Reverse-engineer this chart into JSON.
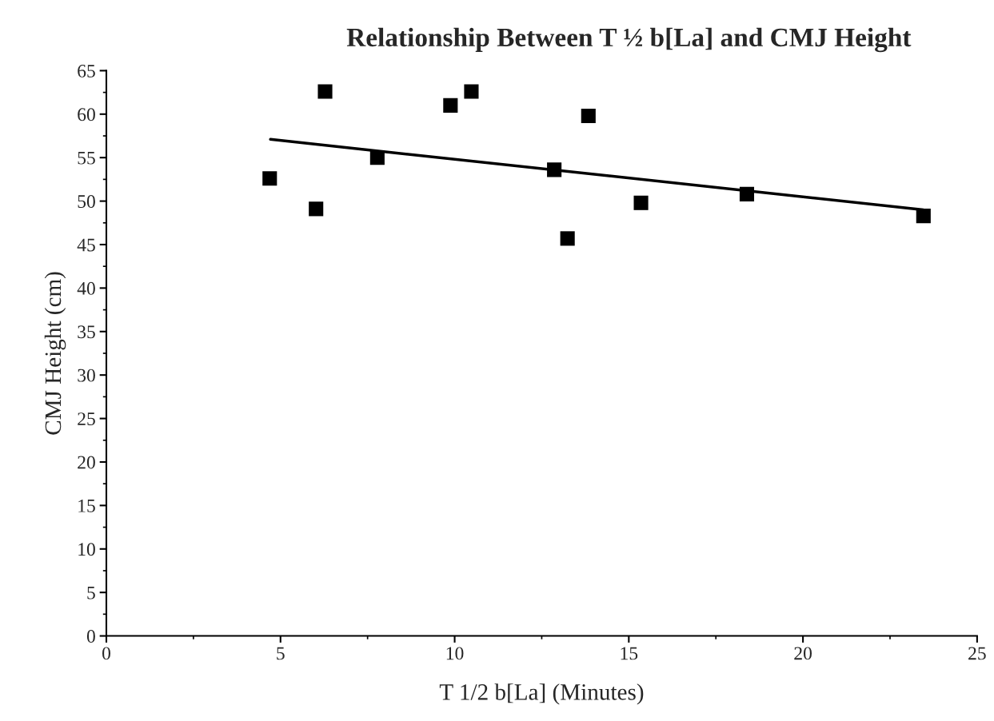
{
  "chart_data": {
    "type": "scatter",
    "title": "Relationship Between T ½ b[La] and CMJ Height",
    "xlabel": "T 1/2 b[La] (Minutes)",
    "ylabel": "CMJ Height (cm)",
    "xlim": [
      0,
      25
    ],
    "xticks": [
      0,
      5,
      10,
      15,
      20,
      25
    ],
    "ylim": [
      0,
      65
    ],
    "yticks": [
      0,
      5,
      10,
      15,
      20,
      25,
      30,
      35,
      40,
      45,
      50,
      55,
      60,
      65
    ],
    "marker": "square",
    "grid": false,
    "legend": false,
    "series": [
      {
        "color": "#000000",
        "x": [
          4.69,
          6.02,
          6.28,
          7.78,
          9.88,
          10.48,
          12.86,
          13.24,
          13.84,
          15.35,
          18.39,
          23.46
        ],
        "values": [
          52.6,
          49.1,
          62.6,
          55.0,
          61.0,
          62.6,
          53.6,
          45.7,
          59.8,
          49.8,
          50.8,
          48.3
        ]
      },
      {
        "type": "line",
        "color": "#000000",
        "marker": "none",
        "x": [
          4.71,
          23.46
        ],
        "values": [
          57.1,
          49.0
        ]
      }
    ]
  }
}
